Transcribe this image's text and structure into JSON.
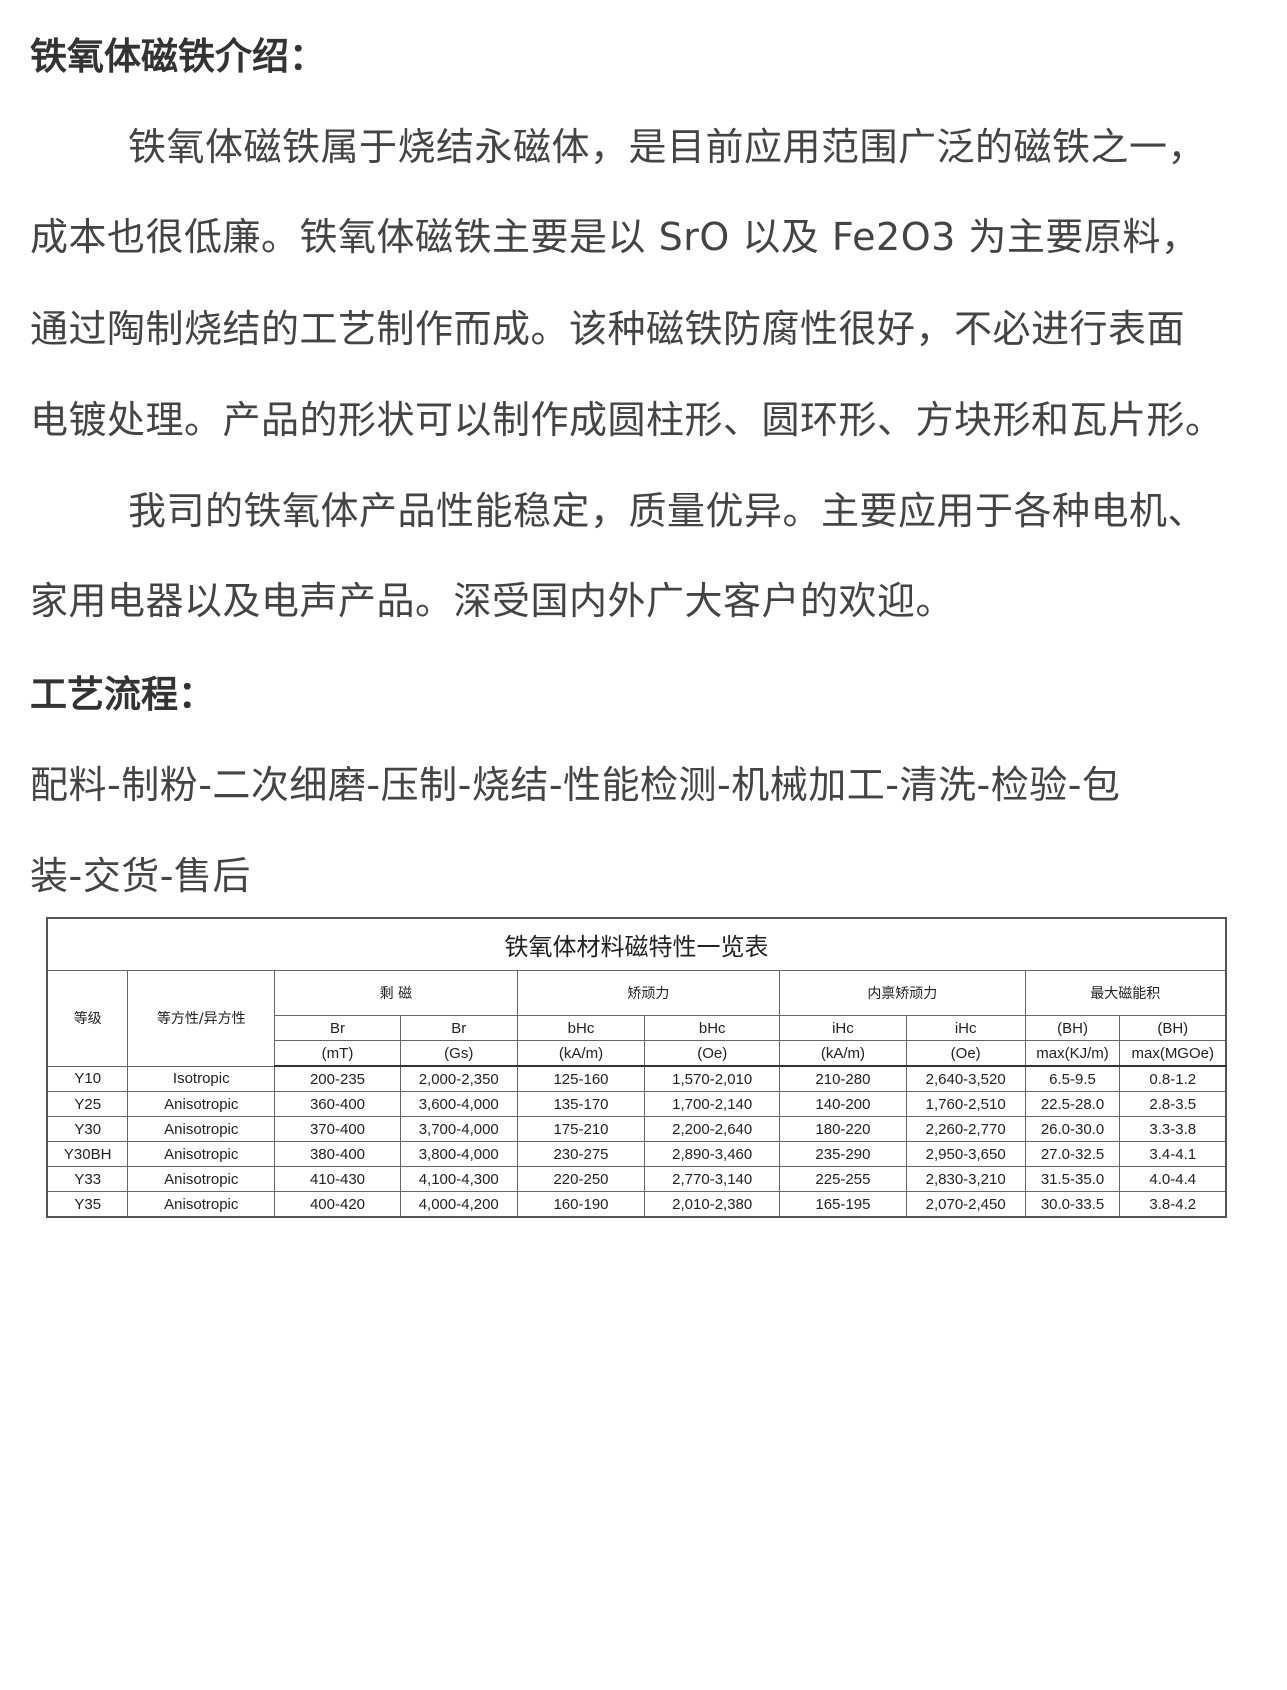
{
  "intro": {
    "heading": "铁氧体磁铁介绍：",
    "lines": [
      "铁氧体磁铁属于烧结永磁体，是目前应用范围广泛的磁铁之一，",
      "成本也很低廉。铁氧体磁铁主要是以 SrO 以及 Fe2O3 为主要原料，",
      "通过陶制烧结的工艺制作而成。该种磁铁防腐性很好，不必进行表面",
      "电镀处理。产品的形状可以制作成圆柱形、圆环形、方块形和瓦片形。",
      "我司的铁氧体产品性能稳定，质量优异。主要应用于各种电机、",
      "家用电器以及电声产品。深受国内外广大客户的欢迎。"
    ]
  },
  "process": {
    "heading": "工艺流程：",
    "lines": [
      "配料-制粉-二次细磨-压制-烧结-性能检测-机械加工-清洗-检验-包",
      "装-交货-售后"
    ]
  },
  "table": {
    "title": "铁氧体材料磁特性一览表",
    "col_grade": "等级",
    "col_type": "等方性/异方性",
    "groups": [
      "剩  磁",
      "矫顽力",
      "内禀矫顽力",
      "最大磁能积"
    ],
    "sub1": [
      "Br",
      "Br",
      "bHc",
      "bHc",
      "iHc",
      "iHc",
      "(BH)",
      "(BH)"
    ],
    "sub2": [
      "(mT)",
      "(Gs)",
      "(kA/m)",
      "(Oe)",
      "(kA/m)",
      "(Oe)",
      "max(KJ/m)",
      "max(MGOe)"
    ],
    "rows": [
      [
        "Y10",
        "Isotropic",
        "200-235",
        "2,000-2,350",
        "125-160",
        "1,570-2,010",
        "210-280",
        "2,640-3,520",
        "6.5-9.5",
        "0.8-1.2"
      ],
      [
        "Y25",
        "Anisotropic",
        "360-400",
        "3,600-4,000",
        "135-170",
        "1,700-2,140",
        "140-200",
        "1,760-2,510",
        "22.5-28.0",
        "2.8-3.5"
      ],
      [
        "Y30",
        "Anisotropic",
        "370-400",
        "3,700-4,000",
        "175-210",
        "2,200-2,640",
        "180-220",
        "2,260-2,770",
        "26.0-30.0",
        "3.3-3.8"
      ],
      [
        "Y30BH",
        "Anisotropic",
        "380-400",
        "3,800-4,000",
        "230-275",
        "2,890-3,460",
        "235-290",
        "2,950-3,650",
        "27.0-32.5",
        "3.4-4.1"
      ],
      [
        "Y33",
        "Anisotropic",
        "410-430",
        "4,100-4,300",
        "220-250",
        "2,770-3,140",
        "225-255",
        "2,830-3,210",
        "31.5-35.0",
        "4.0-4.4"
      ],
      [
        "Y35",
        "Anisotropic",
        "400-420",
        "4,000-4,200",
        "160-190",
        "2,010-2,380",
        "165-195",
        "2,070-2,450",
        "30.0-33.5",
        "3.8-4.2"
      ]
    ]
  }
}
